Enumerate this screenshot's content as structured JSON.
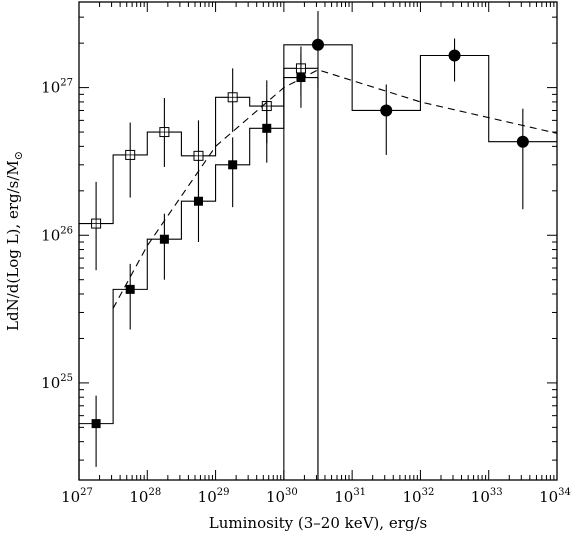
{
  "chart_data": {
    "type": "line",
    "xlabel": "Luminosity (3–20 keV), erg/s",
    "ylabel": "LdN/d(Log L), erg/s/M",
    "ylabel_symbol": "⊙",
    "x_scale": "log",
    "y_scale": "log",
    "xlim": [
      1e+27,
      1e+34
    ],
    "ylim": [
      2.2e+24,
      3.8e+27
    ],
    "grid": false,
    "x_ticks": [
      {
        "base": "10",
        "exp": "27",
        "value": 1e+27
      },
      {
        "base": "10",
        "exp": "28",
        "value": 1e+28
      },
      {
        "base": "10",
        "exp": "29",
        "value": 1e+29
      },
      {
        "base": "10",
        "exp": "30",
        "value": 1e+30
      },
      {
        "base": "10",
        "exp": "31",
        "value": 1e+31
      },
      {
        "base": "10",
        "exp": "32",
        "value": 1e+32
      },
      {
        "base": "10",
        "exp": "33",
        "value": 1e+33
      },
      {
        "base": "10",
        "exp": "34",
        "value": 1e+34
      }
    ],
    "y_ticks": [
      {
        "base": "10",
        "exp": "25",
        "value": 1e+25
      },
      {
        "base": "10",
        "exp": "26",
        "value": 1e+26
      },
      {
        "base": "10",
        "exp": "27",
        "value": 1e+27
      }
    ],
    "series": [
      {
        "marker": "open-square",
        "style": "histogram",
        "bin_edges": [
          1e+27,
          3.16e+27,
          1e+28,
          3.16e+28,
          1e+29,
          3.16e+29,
          1e+30,
          3.16e+30
        ],
        "points": [
          {
            "x": 1.78e+27,
            "y": 1.2e+26,
            "ylo": 5.8e+25,
            "yhi": 2.3e+26
          },
          {
            "x": 5.62e+27,
            "y": 3.5e+26,
            "ylo": 1.8e+26,
            "yhi": 5.8e+26
          },
          {
            "x": 1.78e+28,
            "y": 5e+26,
            "ylo": 2.9e+26,
            "yhi": 8.5e+26
          },
          {
            "x": 5.62e+28,
            "y": 3.45e+26,
            "ylo": 1.75e+26,
            "yhi": 6e+26
          },
          {
            "x": 1.78e+29,
            "y": 8.6e+26,
            "ylo": 5e+26,
            "yhi": 1.35e+27
          },
          {
            "x": 5.62e+29,
            "y": 7.5e+26,
            "ylo": 4.2e+26,
            "yhi": 1.12e+27
          },
          {
            "x": 1.78e+30,
            "y": 1.35e+27,
            "ylo": 8.8e+26,
            "yhi": 1.9e+27
          }
        ]
      },
      {
        "marker": "filled-square",
        "style": "histogram",
        "bin_edges": [
          1e+27,
          3.16e+27,
          1e+28,
          3.16e+28,
          1e+29,
          3.16e+29,
          1e+30,
          3.16e+30
        ],
        "points": [
          {
            "x": 1.78e+27,
            "y": 5.3e+24,
            "ylo": 2.7e+24,
            "yhi": 8.2e+24
          },
          {
            "x": 5.62e+27,
            "y": 4.3e+25,
            "ylo": 2.3e+25,
            "yhi": 6.4e+25
          },
          {
            "x": 1.78e+28,
            "y": 9.4e+25,
            "ylo": 5e+25,
            "yhi": 1.4e+26
          },
          {
            "x": 5.62e+28,
            "y": 1.7e+26,
            "ylo": 9e+25,
            "yhi": 2.6e+26
          },
          {
            "x": 1.78e+29,
            "y": 3e+26,
            "ylo": 1.55e+26,
            "yhi": 4.6e+26
          },
          {
            "x": 5.62e+29,
            "y": 5.3e+26,
            "ylo": 3.1e+26,
            "yhi": 8.2e+26
          },
          {
            "x": 1.78e+30,
            "y": 1.17e+27,
            "ylo": 7.3e+26,
            "yhi": 1.7e+27
          }
        ]
      },
      {
        "marker": "filled-circle",
        "style": "histogram",
        "bin_edges": [
          1e+30,
          1e+31,
          1e+32,
          1e+33,
          1e+34
        ],
        "points": [
          {
            "x": 3.16e+30,
            "y": 1.95e+27,
            "ylo": 1e+27,
            "yhi": 3.3e+27
          },
          {
            "x": 3.16e+31,
            "y": 7e+26,
            "ylo": 3.5e+26,
            "yhi": 1.05e+27
          },
          {
            "x": 3.16e+32,
            "y": 1.65e+27,
            "ylo": 1.1e+27,
            "yhi": 2.15e+27
          },
          {
            "x": 3.16e+33,
            "y": 4.3e+26,
            "ylo": 1.5e+26,
            "yhi": 7.2e+26
          }
        ]
      },
      {
        "style": "dashed-line",
        "points": [
          {
            "x": 3.16e+27,
            "y": 3.2e+25
          },
          {
            "x": 1e+28,
            "y": 8.5e+25
          },
          {
            "x": 1e+29,
            "y": 4e+26
          },
          {
            "x": 1e+30,
            "y": 1e+27
          },
          {
            "x": 3.16e+30,
            "y": 1.32e+27
          },
          {
            "x": 1e+32,
            "y": 8e+26
          },
          {
            "x": 1e+34,
            "y": 4.9e+26
          }
        ]
      }
    ]
  }
}
